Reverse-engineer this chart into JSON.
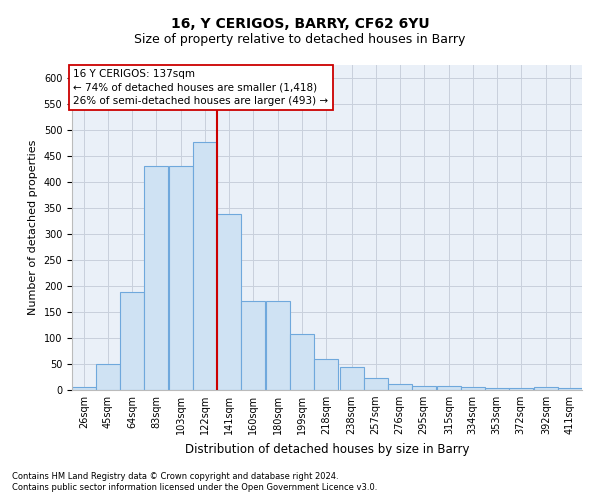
{
  "title": "16, Y CERIGOS, BARRY, CF62 6YU",
  "subtitle": "Size of property relative to detached houses in Barry",
  "xlabel": "Distribution of detached houses by size in Barry",
  "ylabel": "Number of detached properties",
  "footnote1": "Contains HM Land Registry data © Crown copyright and database right 2024.",
  "footnote2": "Contains public sector information licensed under the Open Government Licence v3.0.",
  "annotation_line1": "16 Y CERIGOS: 137sqm",
  "annotation_line2": "← 74% of detached houses are smaller (1,418)",
  "annotation_line3": "26% of semi-detached houses are larger (493) →",
  "bar_color": "#cfe2f3",
  "bar_edge_color": "#6fa8dc",
  "vline_color": "#cc0000",
  "vline_x": 141,
  "categories": [
    "26sqm",
    "45sqm",
    "64sqm",
    "83sqm",
    "103sqm",
    "122sqm",
    "141sqm",
    "160sqm",
    "180sqm",
    "199sqm",
    "218sqm",
    "238sqm",
    "257sqm",
    "276sqm",
    "295sqm",
    "315sqm",
    "334sqm",
    "353sqm",
    "372sqm",
    "392sqm",
    "411sqm"
  ],
  "bin_edges": [
    26,
    45,
    64,
    83,
    103,
    122,
    141,
    160,
    180,
    199,
    218,
    238,
    257,
    276,
    295,
    315,
    334,
    353,
    372,
    392,
    411
  ],
  "bin_width": 19,
  "values": [
    5,
    50,
    188,
    430,
    430,
    477,
    338,
    172,
    172,
    107,
    60,
    44,
    24,
    12,
    8,
    8,
    5,
    4,
    3,
    6,
    3
  ],
  "ylim": [
    0,
    625
  ],
  "yticks": [
    0,
    50,
    100,
    150,
    200,
    250,
    300,
    350,
    400,
    450,
    500,
    550,
    600
  ],
  "title_fontsize": 10,
  "subtitle_fontsize": 9,
  "xlabel_fontsize": 8.5,
  "ylabel_fontsize": 8,
  "tick_fontsize": 7,
  "annotation_fontsize": 7.5,
  "footnote_fontsize": 6,
  "background_color": "#ffffff",
  "plot_bg_color": "#eaf0f8",
  "grid_color": "#c8d0dc"
}
